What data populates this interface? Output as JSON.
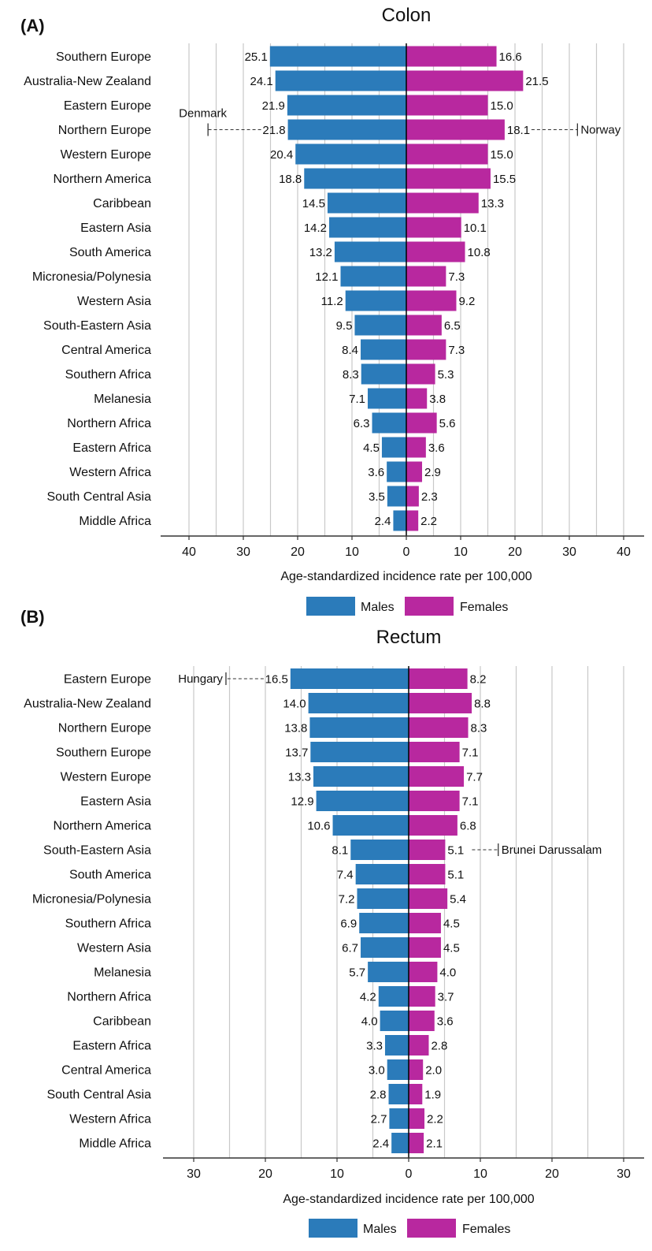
{
  "colors": {
    "males": "#2b7bba",
    "females": "#b8289f",
    "grid": "#c8c8c8"
  },
  "chart_data": [
    {
      "panel": "(A)",
      "type": "bar",
      "title": "Colon",
      "xlabel": "Age-standardized incidence rate per 100,000",
      "ylabel": "",
      "xlim": [
        0,
        44
      ],
      "ticks": [
        "40",
        "30",
        "20",
        "10",
        "0",
        "10",
        "20",
        "30",
        "40"
      ],
      "grid": true,
      "categories": [
        "Southern Europe",
        "Australia-New Zealand",
        "Eastern Europe",
        "Northern Europe",
        "Western Europe",
        "Northern America",
        "Caribbean",
        "Eastern Asia",
        "South America",
        "Micronesia/Polynesia",
        "Western Asia",
        "South-Eastern Asia",
        "Central America",
        "Southern Africa",
        "Melanesia",
        "Northern Africa",
        "Eastern Africa",
        "Western Africa",
        "South Central Asia",
        "Middle Africa"
      ],
      "series": [
        {
          "name": "Males",
          "values": [
            25.1,
            24.1,
            21.9,
            21.8,
            20.4,
            18.8,
            14.5,
            14.2,
            13.2,
            12.1,
            11.2,
            9.5,
            8.4,
            8.3,
            7.1,
            6.3,
            4.5,
            3.6,
            3.5,
            2.4
          ]
        },
        {
          "name": "Females",
          "values": [
            16.6,
            21.5,
            15.0,
            18.1,
            15.0,
            15.5,
            13.3,
            10.1,
            10.8,
            7.3,
            9.2,
            6.5,
            7.3,
            5.3,
            3.8,
            5.6,
            3.6,
            2.9,
            2.3,
            2.2
          ]
        }
      ],
      "annotations": [
        {
          "text": "Denmark",
          "row": 3,
          "side": "males",
          "value": 36.5,
          "label_above": true
        },
        {
          "text": "Norway",
          "row": 3,
          "side": "females",
          "value": 31.5,
          "label_above": false
        }
      ],
      "legend": [
        "Males",
        "Females"
      ]
    },
    {
      "panel": "(B)",
      "type": "bar",
      "title": "Rectum",
      "xlabel": "Age-standardized incidence rate per 100,000",
      "ylabel": "",
      "xlim": [
        0,
        34
      ],
      "ticks": [
        "30",
        "20",
        "10",
        "0",
        "10",
        "20",
        "30"
      ],
      "grid": true,
      "categories": [
        "Eastern Europe",
        "Australia-New Zealand",
        "Northern Europe",
        "Southern Europe",
        "Western Europe",
        "Eastern Asia",
        "Northern America",
        "South-Eastern Asia",
        "South America",
        "Micronesia/Polynesia",
        "Southern Africa",
        "Western Asia",
        "Melanesia",
        "Northern Africa",
        "Caribbean",
        "Eastern Africa",
        "Central America",
        "South Central Asia",
        "Western Africa",
        "Middle Africa"
      ],
      "series": [
        {
          "name": "Males",
          "values": [
            16.5,
            14.0,
            13.8,
            13.7,
            13.3,
            12.9,
            10.6,
            8.1,
            7.4,
            7.2,
            6.9,
            6.7,
            5.7,
            4.2,
            4.0,
            3.3,
            3.0,
            2.8,
            2.7,
            2.4
          ]
        },
        {
          "name": "Females",
          "values": [
            8.2,
            8.8,
            8.3,
            7.1,
            7.7,
            7.1,
            6.8,
            5.1,
            5.1,
            5.4,
            4.5,
            4.5,
            4.0,
            3.7,
            3.6,
            2.8,
            2.0,
            1.9,
            2.2,
            2.1
          ]
        }
      ],
      "annotations": [
        {
          "text": "Hungary",
          "row": 0,
          "side": "males",
          "value": 25.5,
          "label_above": false
        },
        {
          "text": "Brunei Darussalam",
          "row": 7,
          "side": "females",
          "value": 12.5,
          "label_above": false
        }
      ],
      "legend": [
        "Males",
        "Females"
      ]
    }
  ]
}
